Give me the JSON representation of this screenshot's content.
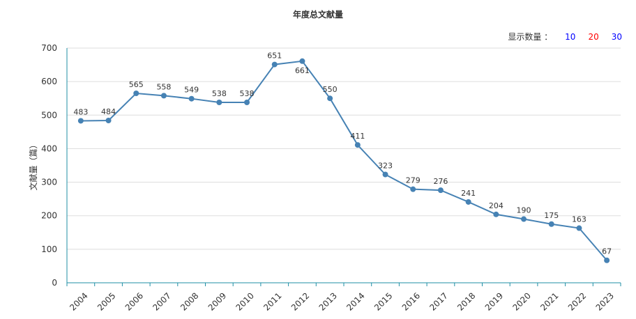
{
  "title": "年度总文献量",
  "display_count": {
    "label": "显示数量 ：",
    "options": [
      "10",
      "20",
      "30"
    ],
    "colors": [
      "#0000ff",
      "#ff0000",
      "#0000ff"
    ]
  },
  "chart_data": {
    "type": "line",
    "title": "年度总文献量",
    "xlabel": "",
    "ylabel": "文献量（篇）",
    "x": [
      "2004",
      "2005",
      "2006",
      "2007",
      "2008",
      "2009",
      "2010",
      "2011",
      "2012",
      "2013",
      "2014",
      "2015",
      "2016",
      "2017",
      "2018",
      "2019",
      "2020",
      "2021",
      "2022",
      "2023"
    ],
    "series": [
      {
        "values": [
          483,
          484,
          565,
          558,
          549,
          538,
          538,
          651,
          661,
          550,
          411,
          323,
          279,
          276,
          241,
          204,
          190,
          175,
          163,
          67
        ],
        "color": "#4682b4"
      }
    ],
    "ylim": [
      0,
      700
    ],
    "yticks": [
      0,
      100,
      200,
      300,
      400,
      500,
      600,
      700
    ],
    "grid": true
  }
}
